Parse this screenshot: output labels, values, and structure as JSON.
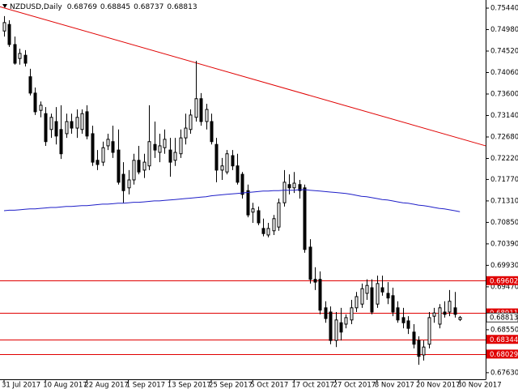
{
  "chart_data": {
    "type": "candlestick",
    "title": "NZDUSD,Daily",
    "categories": [
      "31 Jul 2017",
      null,
      null,
      null,
      null,
      null,
      null,
      null,
      "10 Aug 2017",
      null,
      null,
      null,
      null,
      null,
      null,
      null,
      "22 Aug 2017",
      null,
      null,
      null,
      null,
      null,
      null,
      null,
      "1 Sep 2017",
      null,
      null,
      null,
      null,
      null,
      null,
      null,
      "13 Sep 2017",
      null,
      null,
      null,
      null,
      null,
      null,
      null,
      "25 Sep 2017",
      null,
      null,
      null,
      null,
      null,
      null,
      null,
      "5 Oct 2017",
      null,
      null,
      null,
      null,
      null,
      null,
      null,
      "17 Oct 2017",
      null,
      null,
      null,
      null,
      null,
      null,
      null,
      "27 Oct 2017",
      null,
      null,
      null,
      null,
      null,
      null,
      null,
      "8 Nov 2017",
      null,
      null,
      null,
      null,
      null,
      null,
      null,
      "20 Nov 2017",
      null,
      null,
      null,
      null,
      null,
      null,
      null,
      "30 Nov 2017"
    ],
    "open": [
      0.7495,
      0.7509,
      0.7466,
      0.7436,
      0.7443,
      0.7397,
      0.7362,
      0.7325,
      0.7318,
      0.7284,
      0.7301,
      0.7284,
      0.7275,
      0.7301,
      0.7287,
      0.7284,
      0.7322,
      0.7275,
      0.7218,
      0.7214,
      0.7249,
      0.7258,
      0.724,
      0.7188,
      0.7159,
      0.7176,
      0.7218,
      0.7197,
      0.7206,
      0.7252,
      0.7235,
      0.7245,
      0.724,
      0.7218,
      0.7232,
      0.7266,
      0.7284,
      0.731,
      0.735,
      0.7301,
      0.7301,
      0.7252,
      0.7197,
      0.7193,
      0.7228,
      0.7206,
      0.7188,
      0.7153,
      0.7107,
      0.711,
      0.7072,
      0.7058,
      0.7067,
      0.7075,
      0.7127,
      0.7166,
      0.7159,
      0.7166,
      0.7159,
      0.7032,
      0.6963,
      0.6963,
      0.6902,
      0.6893,
      0.6832,
      0.687,
      0.6867,
      0.6876,
      0.6902,
      0.691,
      0.6933,
      0.6945,
      0.691,
      0.6945,
      0.6933,
      0.6928,
      0.6902,
      0.6881,
      0.6874,
      0.685,
      0.6832,
      0.6801,
      0.6824,
      0.6884,
      0.6867,
      0.6893,
      0.6893,
      0.6902,
      0.68769
    ],
    "high": [
      0.7527,
      0.7518,
      0.7483,
      0.7457,
      0.7454,
      0.7414,
      0.7374,
      0.7344,
      0.7332,
      0.7318,
      0.7332,
      0.7336,
      0.7318,
      0.7318,
      0.7327,
      0.7327,
      0.7336,
      0.7292,
      0.724,
      0.7258,
      0.7275,
      0.7292,
      0.7284,
      0.7214,
      0.7197,
      0.7232,
      0.7249,
      0.7232,
      0.7336,
      0.7301,
      0.7275,
      0.7284,
      0.7266,
      0.7266,
      0.7284,
      0.7318,
      0.7327,
      0.7431,
      0.7362,
      0.7339,
      0.7318,
      0.7266,
      0.7223,
      0.724,
      0.724,
      0.7232,
      0.7193,
      0.7166,
      0.7127,
      0.7119,
      0.7093,
      0.7084,
      0.7101,
      0.7136,
      0.7197,
      0.7188,
      0.7193,
      0.7176,
      0.7166,
      0.7049,
      0.6989,
      0.698,
      0.6916,
      0.6905,
      0.6893,
      0.6902,
      0.6888,
      0.6919,
      0.6936,
      0.6954,
      0.6963,
      0.6963,
      0.6971,
      0.6971,
      0.6957,
      0.6945,
      0.6916,
      0.6902,
      0.6884,
      0.6867,
      0.6841,
      0.6832,
      0.6893,
      0.6902,
      0.691,
      0.6916,
      0.694,
      0.6936,
      0.68845
    ],
    "low": [
      0.7483,
      0.7461,
      0.7423,
      0.7423,
      0.7419,
      0.7357,
      0.7315,
      0.731,
      0.7249,
      0.7266,
      0.7252,
      0.7221,
      0.7266,
      0.7275,
      0.7266,
      0.7275,
      0.7263,
      0.7206,
      0.7197,
      0.7206,
      0.724,
      0.7223,
      0.7166,
      0.7127,
      0.7145,
      0.7166,
      0.7188,
      0.718,
      0.7197,
      0.7223,
      0.7214,
      0.7232,
      0.7183,
      0.7206,
      0.7223,
      0.7252,
      0.7275,
      0.7301,
      0.7292,
      0.7284,
      0.7252,
      0.7171,
      0.7176,
      0.7188,
      0.7197,
      0.7166,
      0.7136,
      0.7096,
      0.7084,
      0.7079,
      0.7055,
      0.7053,
      0.7058,
      0.7067,
      0.7119,
      0.7145,
      0.7148,
      0.7136,
      0.702,
      0.6954,
      0.694,
      0.6888,
      0.687,
      0.6824,
      0.6818,
      0.6832,
      0.6858,
      0.6867,
      0.6893,
      0.6902,
      0.6919,
      0.6888,
      0.6902,
      0.6928,
      0.691,
      0.6884,
      0.687,
      0.6858,
      0.6846,
      0.6815,
      0.678,
      0.6789,
      0.6815,
      0.687,
      0.6858,
      0.6881,
      0.6884,
      0.6881,
      0.68737
    ],
    "close": [
      0.7513,
      0.7466,
      0.7426,
      0.7447,
      0.7426,
      0.7362,
      0.7322,
      0.7336,
      0.7258,
      0.731,
      0.727,
      0.7232,
      0.7301,
      0.7287,
      0.731,
      0.7318,
      0.727,
      0.7214,
      0.7209,
      0.7245,
      0.7263,
      0.7235,
      0.7171,
      0.7153,
      0.7176,
      0.7218,
      0.7193,
      0.7214,
      0.7258,
      0.724,
      0.7249,
      0.7263,
      0.7214,
      0.7235,
      0.7266,
      0.7287,
      0.7315,
      0.735,
      0.7301,
      0.7327,
      0.7258,
      0.7197,
      0.7206,
      0.7232,
      0.7206,
      0.7171,
      0.7145,
      0.7101,
      0.7114,
      0.7084,
      0.7061,
      0.7072,
      0.7093,
      0.7127,
      0.7171,
      0.7159,
      0.7169,
      0.7153,
      0.7027,
      0.6963,
      0.6957,
      0.6897,
      0.6879,
      0.6832,
      0.6876,
      0.685,
      0.6881,
      0.6902,
      0.6926,
      0.6943,
      0.695,
      0.6893,
      0.6954,
      0.6936,
      0.6923,
      0.6893,
      0.6876,
      0.687,
      0.6858,
      0.6824,
      0.6798,
      0.6818,
      0.6881,
      0.6891,
      0.6902,
      0.6888,
      0.6916,
      0.6888,
      0.68813
    ],
    "up_color": "#ffffff",
    "down_color": "#000000",
    "ma": {
      "color": "#1f1fc8",
      "values": [
        0.711,
        0.7111,
        0.7111,
        0.7112,
        0.7113,
        0.7114,
        0.7114,
        0.7115,
        0.7116,
        0.7117,
        0.7117,
        0.7118,
        0.7119,
        0.7119,
        0.712,
        0.7121,
        0.7121,
        0.7122,
        0.7123,
        0.7124,
        0.7124,
        0.7125,
        0.7126,
        0.7126,
        0.7127,
        0.7128,
        0.7128,
        0.7129,
        0.713,
        0.7131,
        0.7131,
        0.7132,
        0.7133,
        0.7134,
        0.7135,
        0.7136,
        0.7137,
        0.7138,
        0.7139,
        0.714,
        0.7142,
        0.7143,
        0.7144,
        0.7145,
        0.7146,
        0.7147,
        0.7148,
        0.7149,
        0.715,
        0.7151,
        0.7152,
        0.7152,
        0.7153,
        0.7153,
        0.7154,
        0.7154,
        0.7154,
        0.7155,
        0.7155,
        0.7154,
        0.7153,
        0.7152,
        0.7151,
        0.715,
        0.7149,
        0.7148,
        0.7147,
        0.7145,
        0.7143,
        0.7141,
        0.714,
        0.7138,
        0.7136,
        0.7134,
        0.7133,
        0.7131,
        0.7129,
        0.7127,
        0.7126,
        0.7124,
        0.7122,
        0.7121,
        0.7119,
        0.7117,
        0.7115,
        0.7114,
        0.7112,
        0.711,
        0.7108
      ]
    },
    "levels": {
      "color": "#e00000",
      "values": [
        0.69602,
        0.68911,
        0.68344,
        0.68029
      ]
    },
    "trendline": {
      "color": "#e00000",
      "values": [
        0.7547,
        0.7249
      ]
    },
    "ylim": [
      0.67489,
      0.75614
    ],
    "yticks": [
      {
        "value": 0.6763,
        "label": "0.67630"
      },
      {
        "value": 0.6855,
        "label": "0.68550"
      },
      {
        "value": 0.6947,
        "label": "0.69470"
      },
      {
        "value": 0.6993,
        "label": "0.69930"
      },
      {
        "value": 0.7039,
        "label": "0.70390"
      },
      {
        "value": 0.7085,
        "label": "0.70850"
      },
      {
        "value": 0.7131,
        "label": "0.71310"
      },
      {
        "value": 0.7177,
        "label": "0.71770"
      },
      {
        "value": 0.7222,
        "label": "0.72220"
      },
      {
        "value": 0.7268,
        "label": "0.72680"
      },
      {
        "value": 0.7314,
        "label": "0.73140"
      },
      {
        "value": 0.736,
        "label": "0.73600"
      },
      {
        "value": 0.7406,
        "label": "0.74060"
      },
      {
        "value": 0.7452,
        "label": "0.74520"
      },
      {
        "value": 0.7498,
        "label": "0.74980"
      },
      {
        "value": 0.7544,
        "label": "0.75440"
      }
    ]
  }
}
